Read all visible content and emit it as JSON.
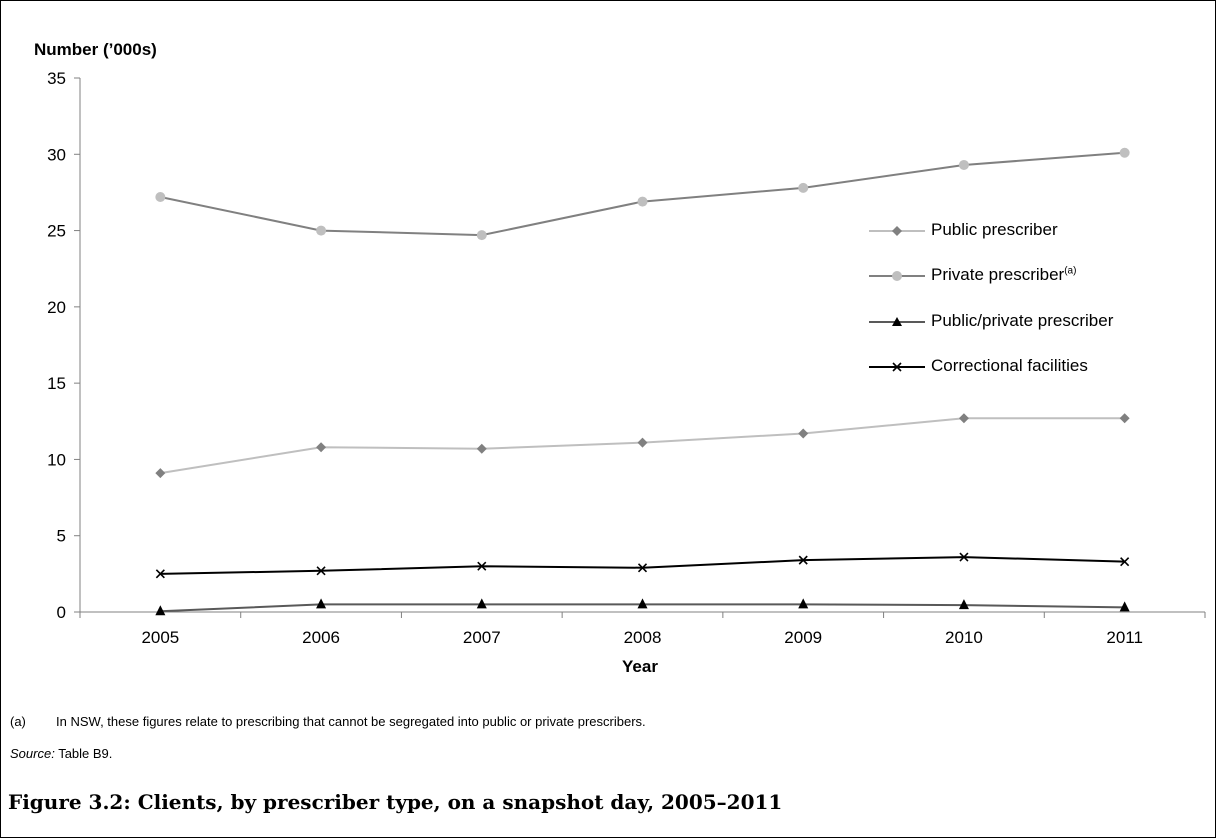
{
  "chart_data": {
    "type": "line",
    "ylabel": "Number (’000s)",
    "xlabel": "Year",
    "ylim": [
      0,
      35
    ],
    "yticks": [
      "0",
      "5",
      "10",
      "15",
      "20",
      "25",
      "30",
      "35"
    ],
    "categories": [
      "2005",
      "2006",
      "2007",
      "2008",
      "2009",
      "2010",
      "2011"
    ],
    "legend_position": "right",
    "grid": false,
    "series": [
      {
        "name": "Public prescriber",
        "values": [
          9.1,
          10.8,
          10.7,
          11.1,
          11.7,
          12.7,
          12.7
        ],
        "color": "#bfbfbf",
        "marker": "diamond",
        "marker_color": "#808080"
      },
      {
        "name": "Private prescriber",
        "superscript": "(a)",
        "values": [
          27.2,
          25.0,
          24.7,
          26.9,
          27.8,
          29.3,
          30.1
        ],
        "color": "#808080",
        "marker": "circle",
        "marker_color": "#bfbfbf"
      },
      {
        "name": "Public/private prescriber",
        "values": [
          0.05,
          0.5,
          0.5,
          0.5,
          0.5,
          0.45,
          0.3
        ],
        "color": "#595959",
        "marker": "triangle",
        "marker_color": "#000000"
      },
      {
        "name": "Correctional facilities",
        "values": [
          2.5,
          2.7,
          3.0,
          2.9,
          3.4,
          3.6,
          3.3
        ],
        "color": "#000000",
        "marker": "x",
        "marker_color": "#000000"
      }
    ]
  },
  "footnote": {
    "marker": "(a)",
    "text": "In NSW, these figures relate to prescribing that cannot be segregated into public or private prescribers."
  },
  "source": {
    "label": "Source:",
    "text": " Table B9."
  },
  "caption": "Figure 3.2: Clients, by prescriber type, on a snapshot day, 2005–2011"
}
